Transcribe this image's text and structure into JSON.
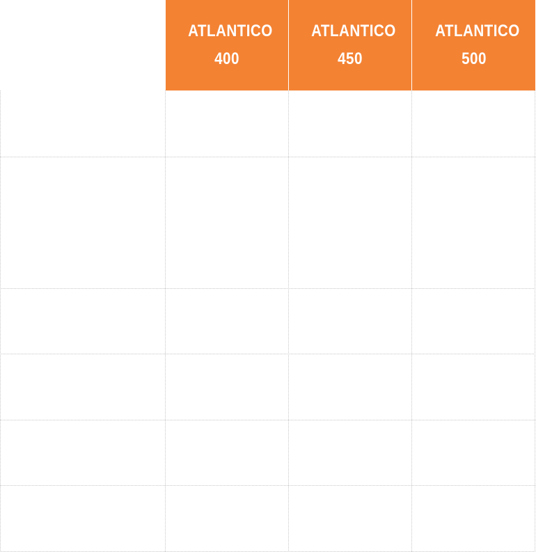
{
  "table": {
    "header": [
      "ATLANTICO 400",
      "ATLANTICO 450",
      "ATLANTICO 500"
    ]
  }
}
